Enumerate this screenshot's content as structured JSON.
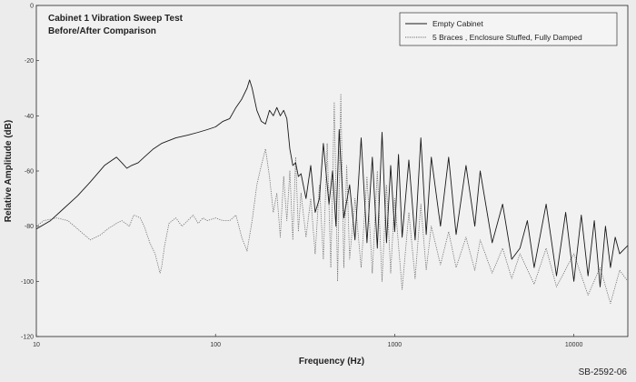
{
  "chart_data": {
    "type": "line",
    "title": "Cabinet 1 Vibration Sweep Test",
    "subtitle": "Before/After Comparison",
    "xlabel": "Frequency (Hz)",
    "ylabel": "Relative Amplitude (dB)",
    "x_scale": "log",
    "xlim": [
      10,
      20000
    ],
    "ylim": [
      -120,
      0
    ],
    "x_ticks": [
      10,
      100,
      1000,
      10000
    ],
    "x_tick_labels": [
      "10",
      "100",
      "1000",
      "10000"
    ],
    "y_ticks": [
      0,
      -20,
      -40,
      -60,
      -80,
      -100,
      -120
    ],
    "y_tick_labels": [
      "0",
      "-20",
      "-40",
      "-60",
      "-80",
      "-100",
      "-120"
    ],
    "grid": false,
    "legend_position": "top-right",
    "figure_label": "SB-2592-06",
    "series": [
      {
        "name": "Empty Cabinet",
        "color": "#1a1a1a",
        "style": "solid",
        "x": [
          10,
          12,
          14,
          17,
          20,
          24,
          28,
          30,
          32,
          34,
          37,
          40,
          45,
          50,
          60,
          70,
          80,
          90,
          100,
          110,
          120,
          130,
          140,
          150,
          155,
          160,
          170,
          180,
          190,
          200,
          210,
          220,
          230,
          240,
          250,
          260,
          270,
          280,
          290,
          300,
          320,
          340,
          360,
          380,
          400,
          430,
          450,
          470,
          490,
          520,
          560,
          600,
          650,
          700,
          750,
          800,
          850,
          900,
          950,
          1000,
          1050,
          1100,
          1200,
          1300,
          1400,
          1500,
          1600,
          1800,
          2000,
          2200,
          2500,
          2800,
          3000,
          3500,
          4000,
          4500,
          5000,
          5500,
          6000,
          7000,
          8000,
          9000,
          10000,
          11000,
          12000,
          13000,
          14000,
          15000,
          16000,
          17000,
          18000,
          20000
        ],
        "y": [
          -81,
          -78,
          -74,
          -69,
          -64,
          -58,
          -55,
          -57,
          -59,
          -58,
          -57,
          -55,
          -52,
          -50,
          -48,
          -47,
          -46,
          -45,
          -44,
          -42,
          -41,
          -37,
          -34,
          -30,
          -27,
          -30,
          -38,
          -42,
          -43,
          -38,
          -40,
          -37,
          -40,
          -38,
          -41,
          -52,
          -58,
          -57,
          -62,
          -61,
          -70,
          -58,
          -75,
          -70,
          -50,
          -72,
          -60,
          -80,
          -45,
          -77,
          -65,
          -85,
          -48,
          -86,
          -55,
          -88,
          -46,
          -86,
          -58,
          -82,
          -54,
          -84,
          -56,
          -85,
          -48,
          -83,
          -55,
          -80,
          -55,
          -83,
          -58,
          -80,
          -60,
          -86,
          -72,
          -92,
          -88,
          -78,
          -95,
          -72,
          -98,
          -75,
          -100,
          -76,
          -98,
          -78,
          -102,
          -80,
          -95,
          -84,
          -90,
          -87
        ]
      },
      {
        "name": "5 Braces , Enclosure Stuffed, Fully Damped",
        "color": "#6a6a6a",
        "style": "dotted",
        "x": [
          10,
          11,
          13,
          15,
          17,
          20,
          23,
          25,
          28,
          30,
          33,
          35,
          38,
          40,
          43,
          46,
          49,
          50,
          52,
          55,
          60,
          65,
          70,
          75,
          80,
          85,
          90,
          100,
          110,
          120,
          130,
          135,
          140,
          150,
          160,
          170,
          180,
          190,
          200,
          210,
          220,
          230,
          240,
          250,
          260,
          270,
          280,
          290,
          300,
          320,
          340,
          360,
          380,
          400,
          420,
          440,
          460,
          480,
          500,
          520,
          540,
          560,
          600,
          650,
          700,
          750,
          800,
          850,
          900,
          950,
          1000,
          1100,
          1200,
          1300,
          1400,
          1500,
          1600,
          1800,
          2000,
          2200,
          2500,
          2800,
          3000,
          3500,
          4000,
          4500,
          5000,
          6000,
          7000,
          8000,
          10000,
          12000,
          14000,
          16000,
          18000,
          20000
        ],
        "y": [
          -80,
          -78,
          -77,
          -78,
          -81,
          -85,
          -83,
          -81,
          -79,
          -78,
          -80,
          -76,
          -77,
          -80,
          -86,
          -90,
          -97,
          -95,
          -87,
          -79,
          -77,
          -80,
          -78,
          -76,
          -79,
          -77,
          -78,
          -77,
          -78,
          -78,
          -76,
          -80,
          -84,
          -89,
          -78,
          -65,
          -58,
          -52,
          -62,
          -75,
          -68,
          -84,
          -62,
          -78,
          -60,
          -85,
          -55,
          -82,
          -68,
          -84,
          -70,
          -90,
          -65,
          -92,
          -50,
          -95,
          -35,
          -100,
          -32,
          -95,
          -58,
          -92,
          -70,
          -95,
          -62,
          -97,
          -60,
          -100,
          -65,
          -97,
          -70,
          -103,
          -75,
          -99,
          -72,
          -96,
          -80,
          -94,
          -82,
          -95,
          -84,
          -96,
          -85,
          -97,
          -88,
          -99,
          -90,
          -101,
          -88,
          -102,
          -90,
          -105,
          -95,
          -108,
          -96,
          -100
        ]
      }
    ]
  }
}
